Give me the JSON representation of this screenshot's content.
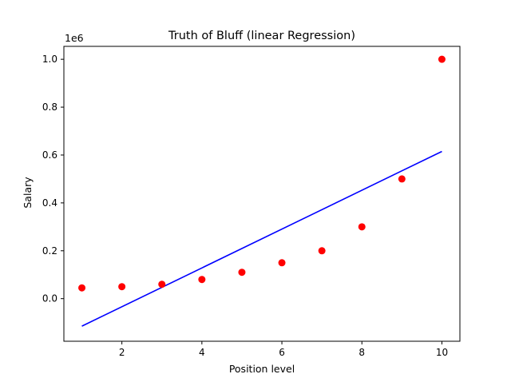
{
  "chart_data": {
    "type": "scatter",
    "title": "Truth of Bluff (linear Regression)",
    "xlabel": "Position level",
    "ylabel": "Salary",
    "y_offset_label": "1e6",
    "xlim": [
      0.55,
      10.45
    ],
    "ylim": [
      -0.178,
      1.054
    ],
    "x_ticks": [
      2,
      4,
      6,
      8,
      10
    ],
    "x_tick_labels": [
      "2",
      "4",
      "6",
      "8",
      "10"
    ],
    "y_ticks": [
      0.0,
      0.2,
      0.4,
      0.6,
      0.8,
      1.0
    ],
    "y_tick_labels": [
      "0.0",
      "0.2",
      "0.4",
      "0.6",
      "0.8",
      "1.0"
    ],
    "grid": false,
    "series": [
      {
        "kind": "scatter",
        "color": "#ff0000",
        "x": [
          1,
          2,
          3,
          4,
          5,
          6,
          7,
          8,
          9,
          10
        ],
        "y": [
          0.045,
          0.05,
          0.06,
          0.08,
          0.11,
          0.15,
          0.2,
          0.3,
          0.5,
          1.0
        ]
      },
      {
        "kind": "line",
        "color": "#0000ff",
        "x": [
          1,
          10
        ],
        "y": [
          -0.115,
          0.615
        ]
      }
    ]
  }
}
